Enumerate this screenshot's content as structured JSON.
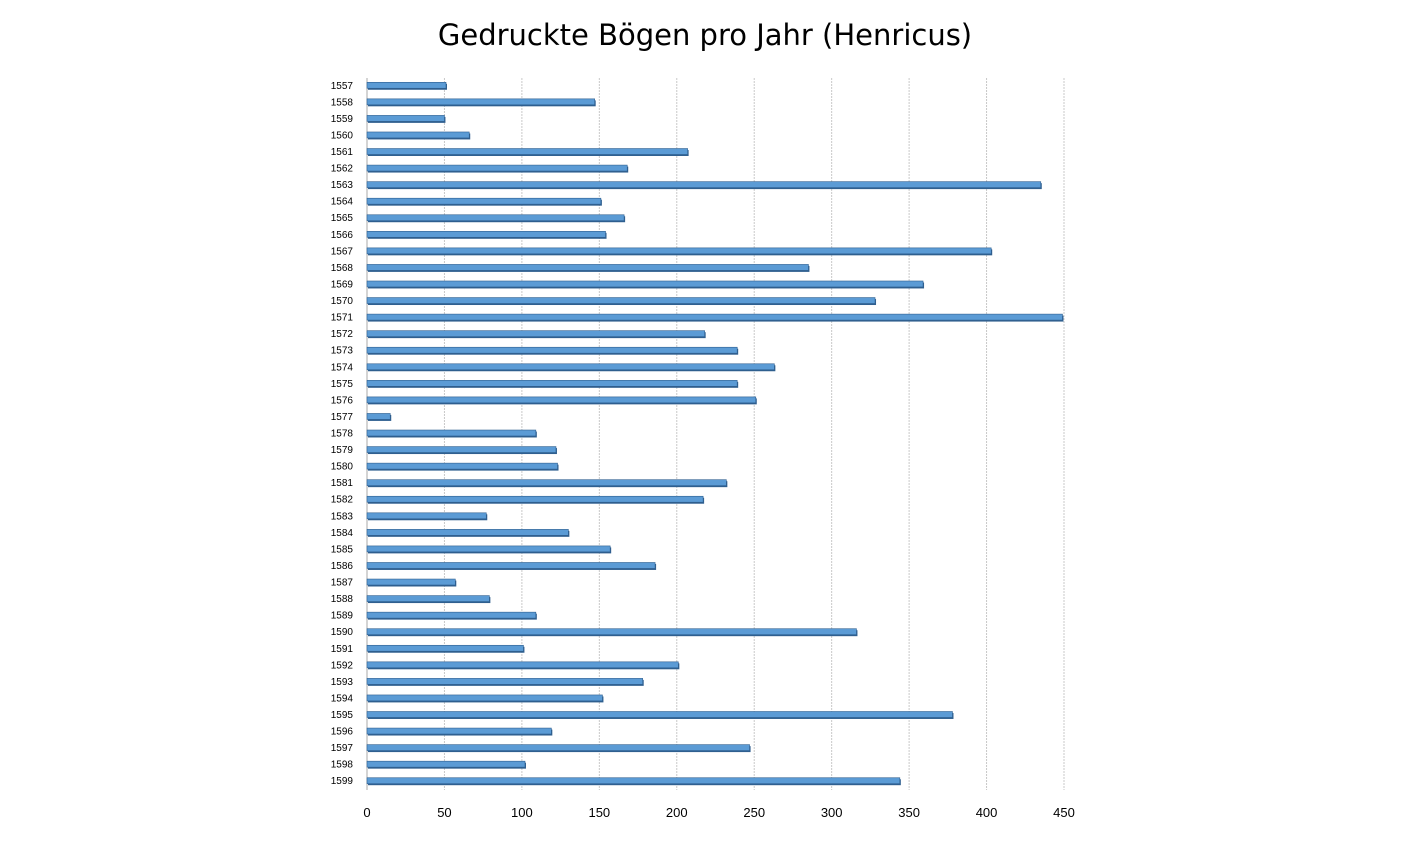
{
  "colors": {
    "bar_fill": "#5b9bd5",
    "bar_shade": "#2f5f8f",
    "gridline": "#c8c8c8",
    "background": "#ffffff"
  },
  "chart_data": {
    "type": "bar",
    "orientation": "horizontal",
    "title": "Gedruckte Bögen pro Jahr (Henricus)",
    "xlabel": "",
    "ylabel": "",
    "xlim": [
      0,
      450
    ],
    "x_ticks": [
      "0",
      "50",
      "100",
      "150",
      "200",
      "250",
      "300",
      "350",
      "400",
      "450"
    ],
    "grid": true,
    "legend": "none",
    "categories": [
      "1557",
      "1558",
      "1559",
      "1560",
      "1561",
      "1562",
      "1563",
      "1564",
      "1565",
      "1566",
      "1567",
      "1568",
      "1569",
      "1570",
      "1571",
      "1572",
      "1573",
      "1574",
      "1575",
      "1576",
      "1577",
      "1578",
      "1579",
      "1580",
      "1581",
      "1582",
      "1583",
      "1584",
      "1585",
      "1586",
      "1587",
      "1588",
      "1589",
      "1590",
      "1591",
      "1592",
      "1593",
      "1594",
      "1595",
      "1596",
      "1597",
      "1598",
      "1599"
    ],
    "values": [
      51,
      147,
      50,
      66,
      207,
      168,
      435,
      151,
      166,
      154,
      403,
      285,
      359,
      328,
      449,
      218,
      239,
      263,
      239,
      251,
      15,
      109,
      122,
      123,
      232,
      217,
      77,
      130,
      157,
      186,
      57,
      79,
      109,
      316,
      101,
      201,
      178,
      152,
      378,
      119,
      247,
      102,
      344
    ]
  }
}
